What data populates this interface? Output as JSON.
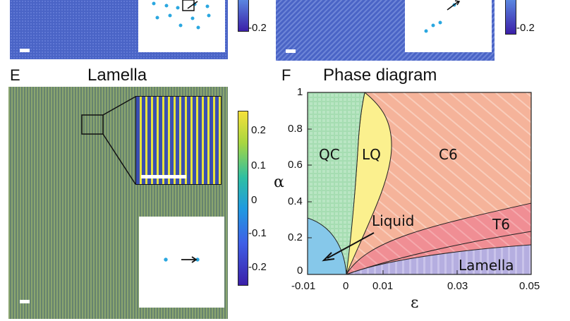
{
  "colors": {
    "hex_blue": "#4a64c6",
    "lamella_green": "#6e8c74",
    "qc_green": "#a6ddb2",
    "liquid_blue": "#86c8ea",
    "lq_yellow": "#fbf08e",
    "c6_salmon": "#f5b39a",
    "t6_pink": "#f08e94",
    "lamella_purple": "#b5aee0",
    "inset_point": "#2aa7e0",
    "colorbar_high": "#f6e03a",
    "colorbar_low": "#3b1fa8"
  },
  "top_left_colorbar_tick": "-0.2",
  "top_right_colorbar_tick": "-0.2",
  "panel_e": {
    "letter": "E",
    "title": "Lamella",
    "colorbar_ticks": [
      "0.2",
      "0.1",
      "0",
      "-0.1",
      "-0.2"
    ]
  },
  "panel_f": {
    "letter": "F",
    "title": "Phase diagram",
    "ylabel": "α",
    "xlabel": "ε",
    "phase_labels": {
      "qc": "QC",
      "lq": "LQ",
      "c6": "C6",
      "t6": "T6",
      "liquid": "Liquid",
      "lamella": "Lamella"
    }
  },
  "chart_data": {
    "type": "area",
    "xlim": [
      -0.01,
      0.05
    ],
    "ylim": [
      0,
      1
    ],
    "xticks": [
      "-0.01",
      "0",
      "0.01",
      "0.03",
      "0.05"
    ],
    "yticks": [
      "0",
      "0.2",
      "0.4",
      "0.6",
      "0.8",
      "1"
    ],
    "xlabel": "ε",
    "ylabel": "α",
    "regions": [
      "QC",
      "LQ",
      "C6",
      "T6",
      "Liquid",
      "Lamella"
    ]
  }
}
